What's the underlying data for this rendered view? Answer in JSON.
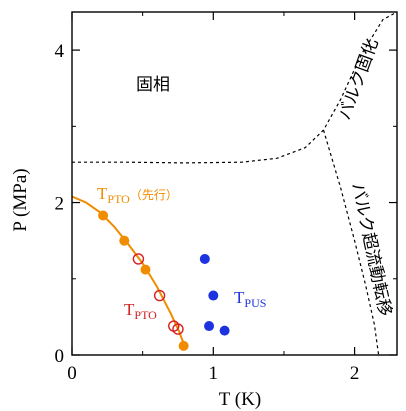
{
  "chart_data": {
    "type": "scatter",
    "xlabel": "T (K)",
    "ylabel": "P (MPa)",
    "xlim": [
      0,
      2.3
    ],
    "ylim": [
      0,
      4.5
    ],
    "x_ticks": [
      0,
      1,
      2
    ],
    "y_ticks": [
      0,
      2,
      4
    ],
    "grid": false,
    "region_labels": {
      "solid": "固相",
      "bulk_solidification": "バルク固化",
      "bulk_superfluid": "バルク超流動転移"
    },
    "series": [
      {
        "name_main": "T",
        "name_sub": "PTO",
        "name_extra": "（先行）",
        "color": "#f08c00",
        "marker": "filled-circle",
        "x": [
          0.22,
          0.37,
          0.52,
          0.79
        ],
        "y": [
          1.83,
          1.5,
          1.12,
          0.12
        ]
      },
      {
        "name_main": "T",
        "name_sub": "PTO",
        "color": "#d62020",
        "marker": "open-circle",
        "x": [
          0.47,
          0.62,
          0.72,
          0.75
        ],
        "y": [
          1.26,
          0.78,
          0.38,
          0.34
        ]
      },
      {
        "name_main": "T",
        "name_sub": "PUS",
        "color": "#1e33e0",
        "marker": "filled-circle",
        "x": [
          0.94,
          1.0,
          0.97,
          1.08
        ],
        "y": [
          1.26,
          0.78,
          0.38,
          0.32
        ]
      }
    ],
    "fit_curve": {
      "color": "#f08c00",
      "x": [
        0.0,
        0.1,
        0.2,
        0.3,
        0.4,
        0.5,
        0.6,
        0.7,
        0.76,
        0.8
      ],
      "y": [
        2.08,
        2.0,
        1.87,
        1.68,
        1.45,
        1.2,
        0.9,
        0.54,
        0.3,
        0.1
      ]
    },
    "phase_boundaries": [
      {
        "name": "solidification",
        "style": "dashed",
        "x": [
          0.0,
          0.4,
          0.8,
          1.2,
          1.45,
          1.65,
          1.78,
          1.9,
          2.05,
          2.2,
          2.3
        ],
        "y": [
          2.53,
          2.53,
          2.52,
          2.53,
          2.58,
          2.72,
          2.95,
          3.35,
          3.95,
          4.4,
          4.5
        ]
      },
      {
        "name": "superfluid",
        "style": "dashed",
        "x": [
          1.78,
          1.9,
          2.0,
          2.08,
          2.14,
          2.17
        ],
        "y": [
          2.95,
          2.2,
          1.5,
          0.9,
          0.4,
          0.0
        ]
      }
    ]
  }
}
